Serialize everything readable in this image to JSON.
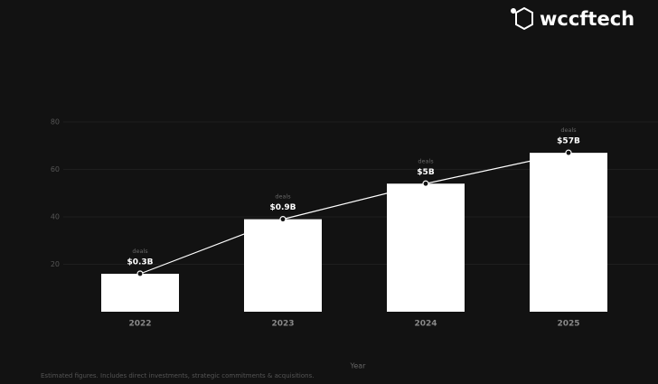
{
  "brand": "wccftech",
  "chart_data": {
    "type": "bar",
    "categories": [
      "2022",
      "2023",
      "2024",
      "2025"
    ],
    "values": [
      16,
      39,
      54,
      67
    ],
    "bar_labels": [
      "$0.3B",
      "$0.9B",
      "$5B",
      "$57B"
    ],
    "bar_sublabels": [
      "deals",
      "deals",
      "deals",
      "deals"
    ],
    "color": "#ffffff",
    "line_color": "#ffffff",
    "ylim": [
      0,
      80
    ],
    "yticks": [
      20,
      40,
      60,
      80
    ],
    "grid": true,
    "xlabel": "Year",
    "footnote": "Estimated figures. Includes direct investments, strategic commitments & acquisitions."
  }
}
